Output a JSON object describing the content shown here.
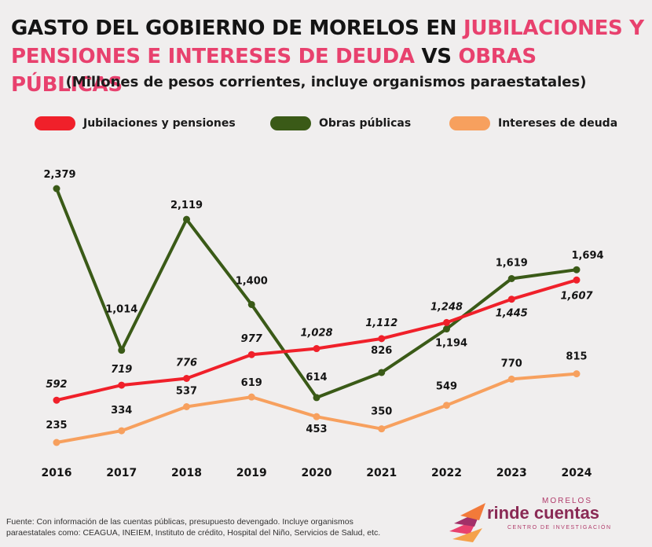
{
  "title": {
    "part1": "GASTO DEL GOBIERNO DE MORELOS EN ",
    "part2": "JUBILACIONES Y PENSIONES E INTERESES DE DEUDA",
    "part3": " VS ",
    "part4": "OBRAS PÚBLICAS"
  },
  "subtitle": "(Millones de pesos corrientes, incluye organismos paraestatales)",
  "colors": {
    "jubilaciones": "#f0202a",
    "obras": "#3a5a17",
    "intereses": "#f7a05e",
    "accent_pink": "#e8416e"
  },
  "chart_data": {
    "type": "line",
    "x": [
      "2016",
      "2017",
      "2018",
      "2019",
      "2020",
      "2021",
      "2022",
      "2023",
      "2024"
    ],
    "series": [
      {
        "name": "Jubilaciones y pensiones",
        "key": "jubilaciones",
        "values": [
          592,
          719,
          776,
          977,
          1028,
          1112,
          1248,
          1445,
          1607
        ],
        "labels": [
          "592",
          "719",
          "776",
          "977",
          "1,028",
          "1,112",
          "1,248",
          "1,445",
          "1,607"
        ]
      },
      {
        "name": "Obras públicas",
        "key": "obras",
        "values": [
          2379,
          1014,
          2119,
          1400,
          614,
          826,
          1194,
          1619,
          1694
        ],
        "labels": [
          "2,379",
          "1,014",
          "2,119",
          "1,400",
          "614",
          "826",
          "1,194",
          "1,619",
          "1,694"
        ]
      },
      {
        "name": "Intereses de deuda",
        "key": "intereses",
        "values": [
          235,
          334,
          537,
          619,
          453,
          350,
          549,
          770,
          815
        ],
        "labels": [
          "235",
          "334",
          "537",
          "619",
          "453",
          "350",
          "549",
          "770",
          "815"
        ]
      }
    ],
    "grid": false,
    "legend": "top"
  },
  "footer": {
    "line1": "Fuente: Con información de las cuentas públicas, presupuesto devengado. Incluye organismos",
    "line2": "paraestatales como: CEAGUA, INEIEM, Instituto de crédito, Hospital del Niño, Servicios de Salud, etc."
  },
  "logo": {
    "top": "MORELOS",
    "main": "rinde cuentas",
    "sub": "CENTRO DE INVESTIGACIÓN"
  }
}
